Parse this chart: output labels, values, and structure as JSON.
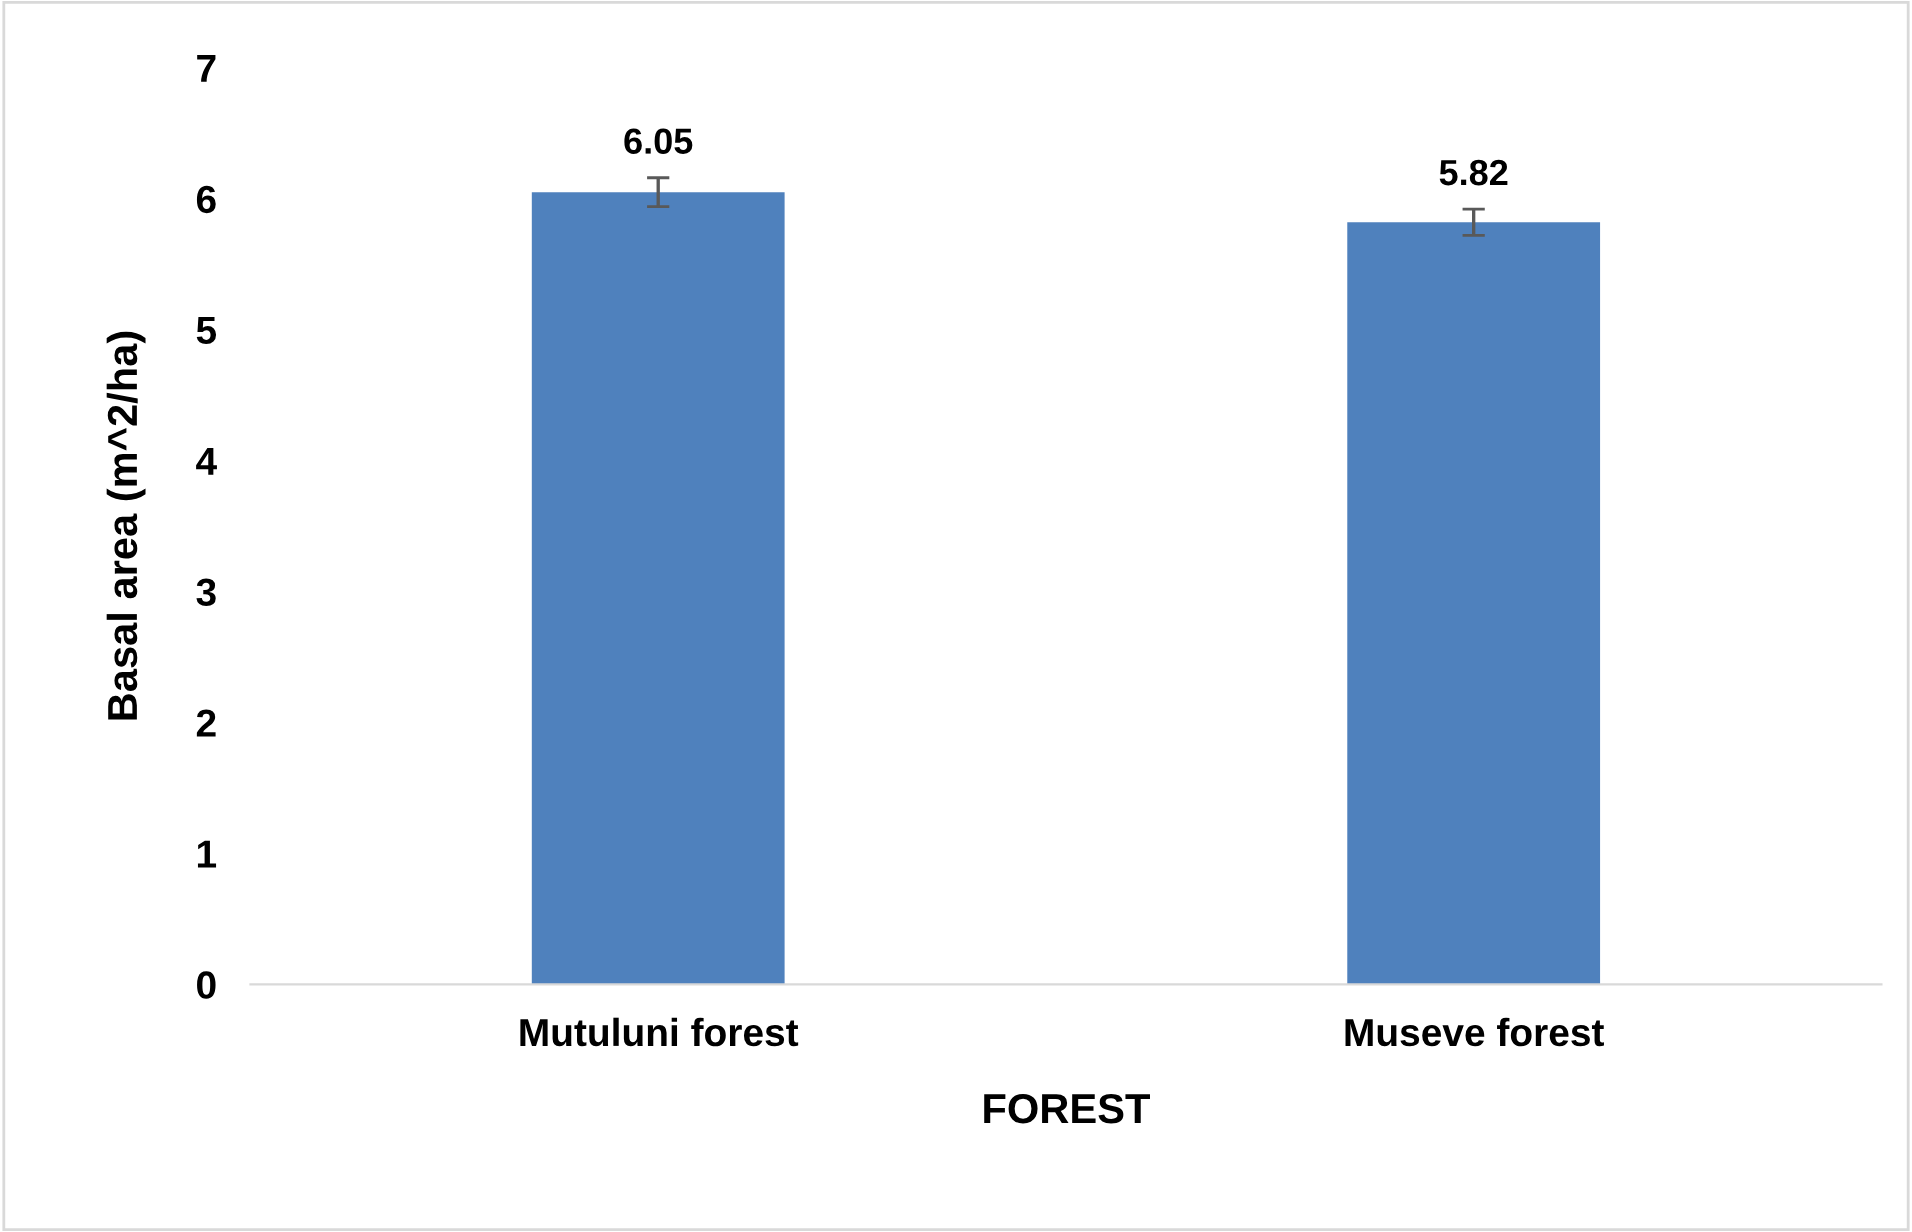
{
  "chart_data": {
    "type": "bar",
    "xlabel": "FOREST",
    "ylabel": "Basal area (m^2/ha)",
    "categories": [
      "Mutuluni forest",
      "Museve forest"
    ],
    "values": [
      6.05,
      5.82
    ],
    "errors": [
      0.11,
      0.1
    ],
    "color": "#4f81bd",
    "ylim": [
      0,
      7
    ],
    "yticks": [
      0,
      1,
      2,
      3,
      4,
      5,
      6,
      7
    ],
    "grid": false,
    "data_labels": true
  }
}
